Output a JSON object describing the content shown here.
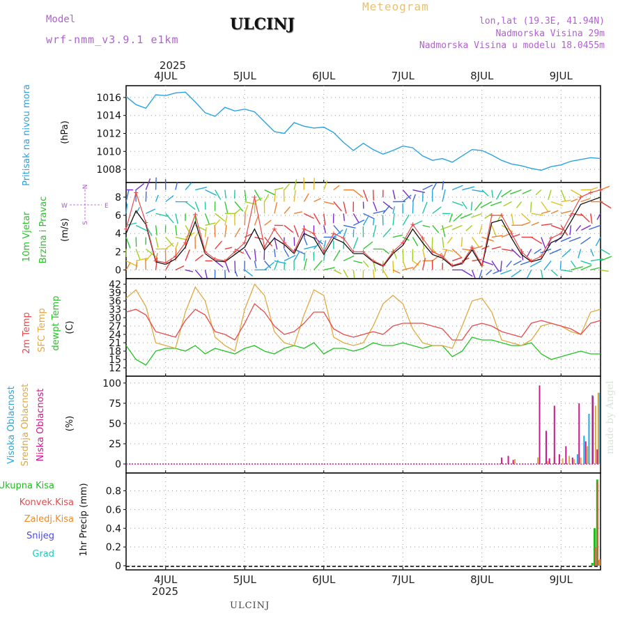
{
  "header": {
    "model_label": "Model",
    "model_name": "wrf-nmm_v3.9.1 e1km",
    "title": "ULCINJ",
    "meteogram": "Meteogram",
    "lonlat": "lon,lat (19.3E, 41.94N)",
    "height": "Nadmorska Visina 29m",
    "model_height": "Nadmorska Visina u modelu 18.0455m"
  },
  "footer": "ULCINJ",
  "made_by": "made by Angel",
  "colors": {
    "pressure": "#29a3e0",
    "temp2m": "#e84a4a",
    "sfc": "#e0a840",
    "dew": "#22c422",
    "cloud_high": "#22a8e0",
    "cloud_mid": "#e0a840",
    "cloud_low": "#d0168c",
    "precip_total": "#22b822",
    "precip_conv": "#e84a4a",
    "precip_frozen": "#f08a2a",
    "snow": "#4a4ae0",
    "graupel": "#20c8c0",
    "dirlabel": "#b050d0"
  },
  "x_axis": {
    "year": "2025",
    "days": [
      "4JUL",
      "5JUL",
      "6JUL",
      "7JUL",
      "8JUL",
      "9JUL"
    ]
  },
  "panels": {
    "pressure": {
      "label": "Pritisak na nivou mora",
      "unit": "(hPa)"
    },
    "wind": {
      "label1": "10m Vjetar",
      "label2": "Brzina i Pravac",
      "unit": "(m/s)",
      "dir_n": "N",
      "dir_s": "S",
      "dir_w": "W",
      "dir_e": "E"
    },
    "temp": {
      "label1": "2m Temp",
      "label2": "SFC Temp",
      "label3": "dewpt Temp",
      "unit": "(C)"
    },
    "cloud": {
      "label1": "Visoka Oblacnost",
      "label2": "Srednja Oblacnost",
      "label3": "Niska Oblacnost",
      "unit": "(%)"
    },
    "precip": {
      "legend": [
        "Ukupna Kisa",
        "Konvek.Kisa",
        "Zaledj.Kisa",
        "Snijeg",
        "Grad"
      ],
      "ylabel": "1hr Precip (mm)"
    }
  },
  "chart_data": [
    {
      "type": "line",
      "name": "pressure",
      "ylim": [
        1007,
        1017
      ],
      "yticks": [
        1008,
        1010,
        1012,
        1014,
        1016
      ],
      "grid": true,
      "x": [
        0,
        3,
        6,
        9,
        12,
        15,
        18,
        21,
        24,
        27,
        30,
        33,
        36,
        39,
        42,
        45,
        48,
        51,
        54,
        57,
        60,
        63,
        66,
        69,
        72,
        75,
        78,
        81,
        84,
        87,
        90,
        93,
        96,
        99,
        102,
        105,
        108,
        111,
        114,
        117,
        120,
        123,
        126,
        129,
        132,
        135,
        138,
        141,
        144
      ],
      "values": [
        1016.1,
        1015.2,
        1014.8,
        1016.3,
        1016.2,
        1016.5,
        1016.6,
        1015.5,
        1014.3,
        1013.9,
        1014.9,
        1014.5,
        1014.7,
        1014.4,
        1013.3,
        1012.2,
        1012.0,
        1013.2,
        1012.8,
        1012.6,
        1012.7,
        1012.1,
        1011.0,
        1010.1,
        1010.9,
        1010.2,
        1009.7,
        1010.1,
        1010.6,
        1010.4,
        1009.5,
        1009.0,
        1009.2,
        1008.8,
        1009.5,
        1010.2,
        1010.1,
        1009.6,
        1009.0,
        1008.6,
        1008.4,
        1008.1,
        1007.9,
        1008.3,
        1008.5,
        1008.9,
        1009.1,
        1009.3,
        1009.2
      ]
    },
    {
      "type": "line",
      "name": "wind",
      "ylim": [
        -0.5,
        9.3
      ],
      "yticks": [
        0,
        2,
        4,
        6,
        8
      ],
      "grid": true,
      "x": [
        0,
        3,
        6,
        9,
        12,
        15,
        18,
        21,
        24,
        27,
        30,
        33,
        36,
        39,
        42,
        45,
        48,
        51,
        54,
        57,
        60,
        63,
        66,
        69,
        72,
        75,
        78,
        81,
        84,
        87,
        90,
        93,
        96,
        99,
        102,
        105,
        108,
        111,
        114,
        117,
        120,
        123,
        126,
        129,
        132,
        135,
        138,
        141,
        144
      ],
      "series": [
        {
          "values": [
            4.5,
            8.5,
            5.2,
            1.0,
            0.8,
            1.5,
            3.0,
            6.1,
            2.0,
            1.2,
            1.0,
            2.0,
            3.0,
            8.0,
            2.5,
            4.5,
            3.0,
            2.0,
            4.5,
            4.0,
            2.0,
            4.0,
            3.5,
            2.0,
            2.0,
            1.0,
            0.5,
            2.0,
            3.0,
            5.0,
            3.5,
            2.0,
            1.5,
            0.5,
            0.8,
            2.5,
            0.5,
            6.0,
            6.0,
            4.0,
            2.0,
            1.0,
            1.5,
            3.5,
            4.0,
            6.0,
            8.0,
            8.5,
            8.8
          ]
        },
        {
          "values": [
            4.0,
            6.5,
            5.0,
            0.9,
            0.6,
            1.2,
            2.5,
            5.3,
            1.8,
            1.0,
            0.9,
            1.7,
            2.5,
            4.5,
            2.2,
            3.5,
            2.8,
            1.8,
            4.0,
            3.5,
            1.7,
            3.5,
            3.0,
            1.8,
            1.8,
            0.9,
            0.4,
            1.8,
            2.7,
            4.5,
            3.0,
            1.7,
            1.3,
            0.4,
            0.7,
            2.2,
            0.4,
            5.2,
            5.5,
            3.5,
            1.7,
            0.9,
            1.2,
            3.0,
            3.5,
            5.3,
            7.2,
            7.6,
            8.0
          ]
        }
      ]
    },
    {
      "type": "line",
      "name": "temperature",
      "ylim": [
        10.5,
        43
      ],
      "yticks": [
        12,
        15,
        18,
        21,
        24,
        27,
        30,
        33,
        36,
        39,
        42
      ],
      "grid": true,
      "x": [
        0,
        3,
        6,
        9,
        12,
        15,
        18,
        21,
        24,
        27,
        30,
        33,
        36,
        39,
        42,
        45,
        48,
        51,
        54,
        57,
        60,
        63,
        66,
        69,
        72,
        75,
        78,
        81,
        84,
        87,
        90,
        93,
        96,
        99,
        102,
        105,
        108,
        111,
        114,
        117,
        120,
        123,
        126,
        129,
        132,
        135,
        138,
        141,
        144
      ],
      "series": [
        {
          "values": [
            32,
            33,
            31,
            25,
            24,
            23,
            29,
            33,
            31,
            25,
            24,
            22,
            28,
            35,
            32,
            27,
            24,
            25,
            28,
            32,
            32,
            26,
            24,
            23,
            24,
            25,
            24,
            27,
            28,
            28,
            28,
            27,
            26,
            22,
            22,
            27,
            28,
            27,
            25,
            24,
            23,
            28,
            29,
            28,
            27,
            26,
            24,
            28,
            29
          ]
        },
        {
          "values": [
            37,
            40,
            34,
            21,
            20,
            19,
            32,
            41,
            36,
            23,
            20,
            18,
            33,
            42,
            38,
            25,
            21,
            20,
            31,
            40,
            38,
            23,
            21,
            20,
            21,
            27,
            35,
            38,
            35,
            26,
            21,
            20,
            20,
            19,
            27,
            36,
            37,
            32,
            22,
            21,
            20,
            22,
            27,
            28,
            27,
            25,
            24,
            32,
            33
          ]
        },
        {
          "values": [
            20,
            15,
            13,
            18,
            19,
            19,
            18,
            20,
            17,
            19,
            18,
            17,
            19,
            20,
            18,
            17,
            19,
            20,
            19,
            21,
            17,
            19,
            19,
            18,
            19,
            21,
            20,
            20,
            21,
            20,
            19,
            20,
            20,
            16,
            18,
            23,
            22,
            22,
            21,
            20,
            20,
            21,
            17,
            15,
            16,
            17,
            18,
            17,
            17
          ]
        }
      ]
    },
    {
      "type": "bar",
      "name": "cloud_cover",
      "ylim": [
        -6,
        105
      ],
      "yticks": [
        0,
        25,
        50,
        75,
        100
      ],
      "grid": true,
      "series": [
        {
          "x": [
            137,
            139,
            140.5,
            141.5,
            143.5
          ],
          "values": [
            12,
            35,
            62,
            85,
            88
          ]
        },
        {
          "x": [
            118,
            125,
            128,
            130,
            132.5,
            134.5,
            136,
            138,
            140,
            142.5,
            143.3
          ],
          "values": [
            6,
            8,
            4,
            9,
            7,
            10,
            6,
            8,
            22,
            72,
            88
          ]
        },
        {
          "x": [
            114,
            116,
            117.5,
            125.5,
            127.5,
            128.5,
            130,
            131.5,
            133.5,
            135.5,
            137.5,
            139.5,
            141.7,
            143
          ],
          "values": [
            8,
            10,
            5,
            97,
            41,
            7,
            72,
            12,
            22,
            8,
            75,
            28,
            84,
            18
          ]
        }
      ]
    },
    {
      "type": "bar",
      "name": "precipitation",
      "ylim": [
        0,
        0.96
      ],
      "yticks": [
        0,
        0.2,
        0.4,
        0.6,
        0.8
      ],
      "grid": true,
      "series": [
        {
          "x": [
            141.5,
            142.2,
            143.0,
            143.7
          ],
          "values": [
            0.03,
            0.4,
            0.92,
            0.06
          ]
        },
        {
          "x": [
            142.5,
            143.2
          ],
          "values": [
            0.2,
            0.9
          ]
        },
        {
          "x": [
            143.9
          ],
          "values": [
            0.07
          ]
        }
      ]
    }
  ]
}
